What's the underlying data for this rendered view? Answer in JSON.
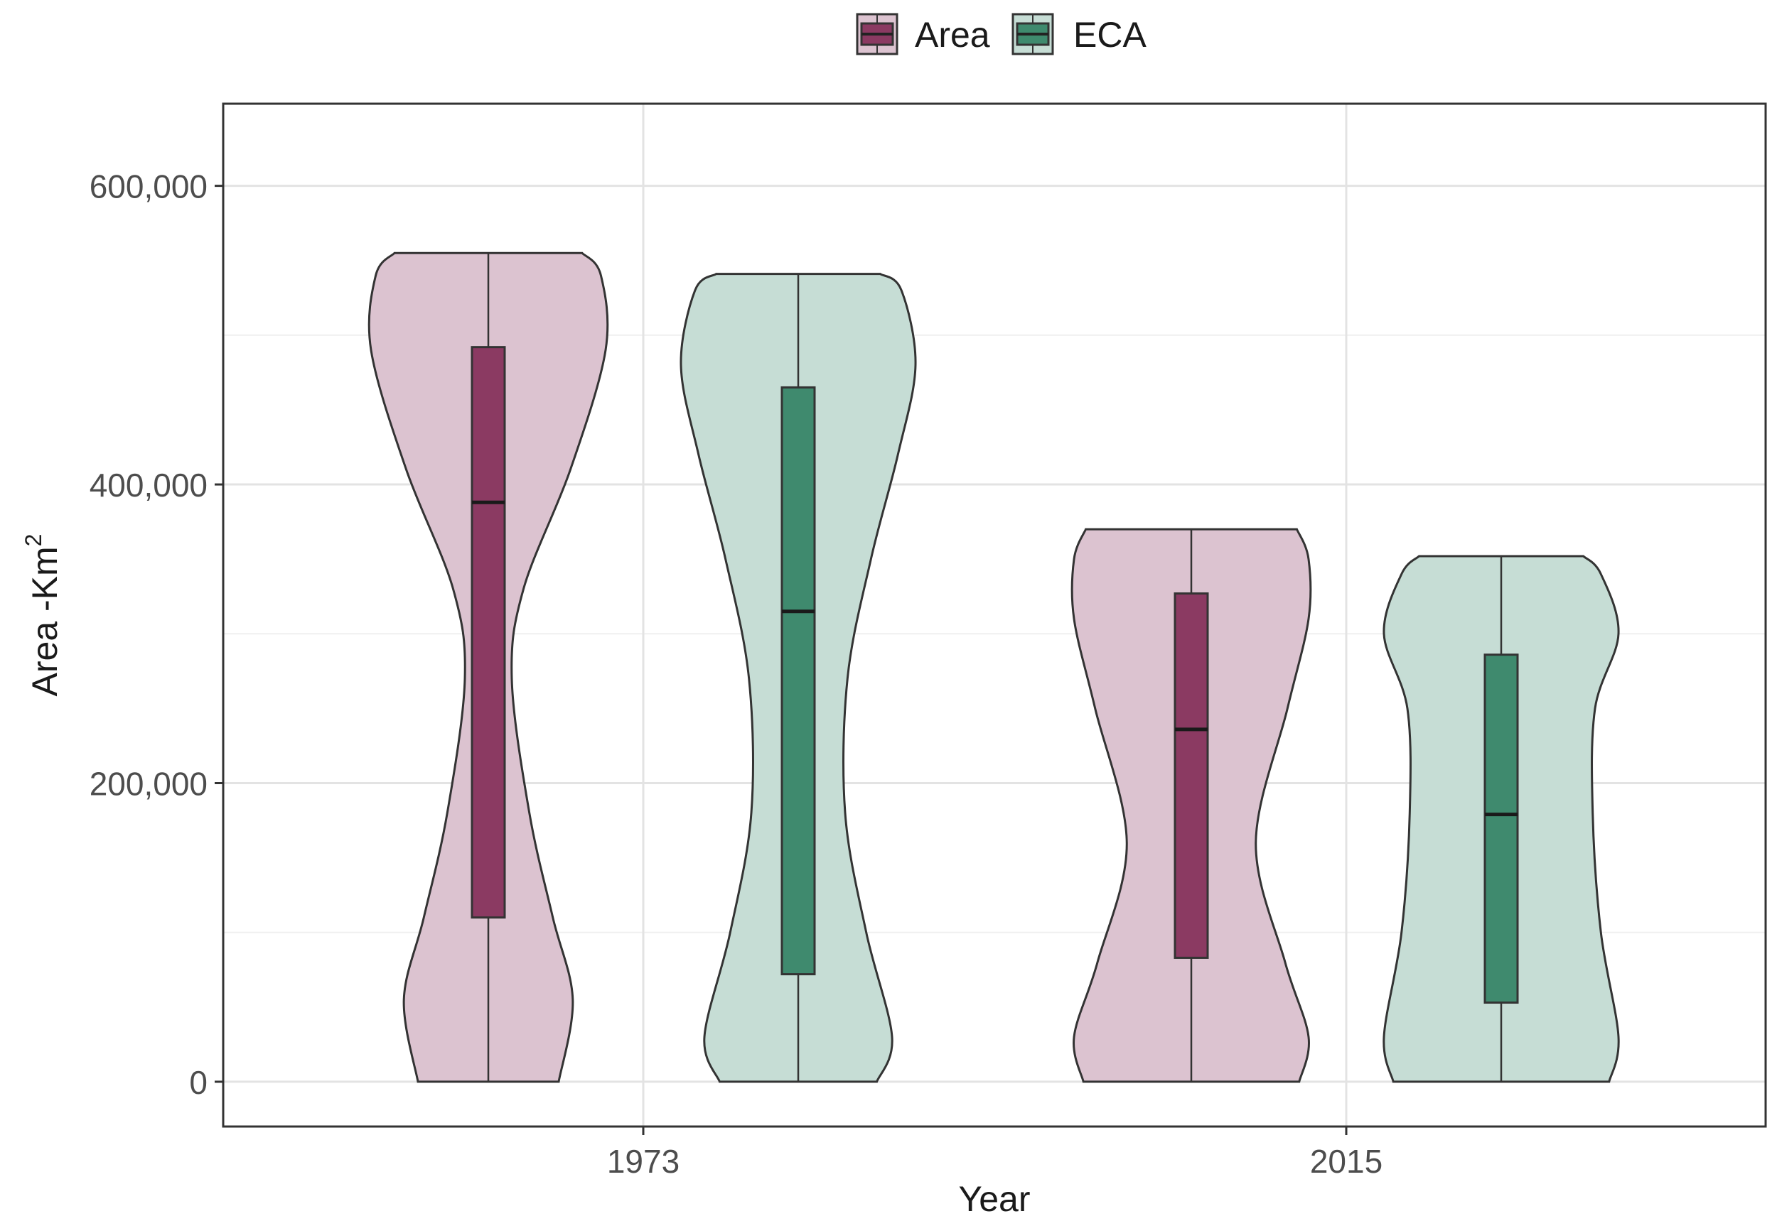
{
  "chart_data": {
    "type": "violin",
    "xlabel": "Year",
    "ylabel": "Area  -Km",
    "ylabel_sup": "2",
    "categories": [
      "1973",
      "2015"
    ],
    "ylim": [
      -30000,
      655000
    ],
    "yticks": [
      0,
      200000,
      400000,
      600000
    ],
    "ytick_labels": [
      "0",
      "200,000",
      "400,000",
      "600,000"
    ],
    "grid": true,
    "legend": {
      "position": "top",
      "entries": [
        {
          "name": "Area",
          "fill": "#8B3A62"
        },
        {
          "name": "ECA",
          "fill": "#3F8A6E"
        }
      ]
    },
    "colors": {
      "Area": {
        "box": "#8B3A62",
        "violin": "#DCC3D0"
      },
      "ECA": {
        "box": "#3F8A6E",
        "violin": "#C6DDD5"
      },
      "outline": "#333333"
    },
    "series": [
      {
        "name": "Area",
        "groups": [
          {
            "category": "1973",
            "min": 0,
            "q1": 110000,
            "median": 388000,
            "q3": 492000,
            "max": 555000,
            "density": [
              [
                0,
                0.6
              ],
              [
                55000,
                0.72
              ],
              [
                110000,
                0.55
              ],
              [
                180000,
                0.35
              ],
              [
                270000,
                0.2
              ],
              [
                330000,
                0.3
              ],
              [
                410000,
                0.7
              ],
              [
                490000,
                1.0
              ],
              [
                540000,
                0.96
              ],
              [
                555000,
                0.8
              ]
            ]
          },
          {
            "category": "2015",
            "min": 0,
            "q1": 83000,
            "median": 236000,
            "q3": 327000,
            "max": 370000,
            "density": [
              [
                0,
                0.92
              ],
              [
                30000,
                1.0
              ],
              [
                80000,
                0.8
              ],
              [
                160000,
                0.55
              ],
              [
                250000,
                0.82
              ],
              [
                310000,
                1.0
              ],
              [
                350000,
                1.0
              ],
              [
                370000,
                0.9
              ]
            ]
          }
        ]
      },
      {
        "name": "ECA",
        "groups": [
          {
            "category": "1973",
            "min": 0,
            "q1": 72000,
            "median": 315000,
            "q3": 465000,
            "max": 541000,
            "density": [
              [
                0,
                0.67
              ],
              [
                30000,
                0.8
              ],
              [
                100000,
                0.58
              ],
              [
                180000,
                0.4
              ],
              [
                270000,
                0.42
              ],
              [
                350000,
                0.62
              ],
              [
                420000,
                0.85
              ],
              [
                480000,
                1.0
              ],
              [
                530000,
                0.88
              ],
              [
                541000,
                0.7
              ]
            ]
          },
          {
            "category": "2015",
            "min": 0,
            "q1": 53000,
            "median": 179000,
            "q3": 286000,
            "max": 352000,
            "density": [
              [
                0,
                0.92
              ],
              [
                30000,
                1.0
              ],
              [
                100000,
                0.85
              ],
              [
                180000,
                0.78
              ],
              [
                250000,
                0.8
              ],
              [
                300000,
                1.0
              ],
              [
                340000,
                0.85
              ],
              [
                352000,
                0.7
              ]
            ]
          }
        ]
      }
    ]
  }
}
